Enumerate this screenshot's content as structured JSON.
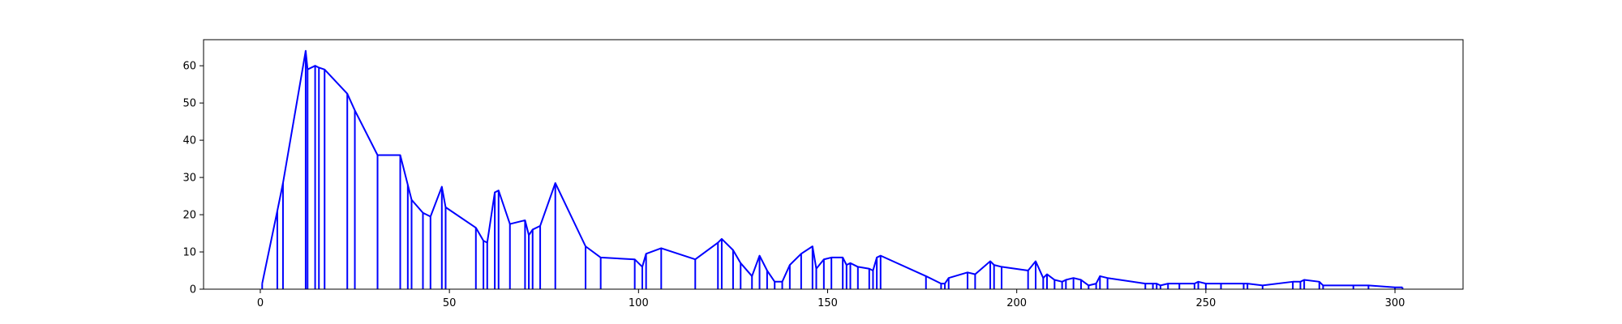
{
  "chart_data": {
    "type": "line",
    "title": "",
    "xlabel": "",
    "ylabel": "",
    "xlim": [
      -15,
      318
    ],
    "ylim": [
      0,
      67
    ],
    "x_ticks": [
      0,
      50,
      100,
      150,
      200,
      250,
      300
    ],
    "y_ticks": [
      0,
      10,
      20,
      30,
      40,
      50,
      60
    ],
    "x_tick_labels": [
      "0",
      "50",
      "100",
      "150",
      "200",
      "250",
      "300"
    ],
    "y_tick_labels": [
      "0",
      "10",
      "20",
      "30",
      "40",
      "50",
      "60"
    ],
    "grid": false,
    "stems": true,
    "series": [
      {
        "color": "#0000ff",
        "x": [
          0.5,
          4.5,
          6,
          12,
          12.5,
          14.5,
          15.5,
          17,
          23,
          25,
          31,
          37,
          39,
          40,
          43,
          45,
          48,
          49,
          57,
          59,
          60,
          62,
          63,
          66,
          70,
          71,
          72,
          74,
          78,
          86,
          90,
          99,
          101,
          102,
          106,
          115,
          121,
          122,
          125,
          127,
          130,
          132,
          134,
          136,
          138,
          140,
          143,
          146,
          147,
          149,
          151,
          154,
          155,
          156,
          158,
          161,
          162,
          163,
          164,
          176,
          180,
          181,
          182,
          187,
          189,
          193,
          194,
          196,
          203,
          205,
          207,
          208,
          210,
          212,
          213,
          215,
          217,
          219,
          221,
          222,
          224,
          234,
          236,
          237,
          238,
          240,
          243,
          247,
          248,
          250,
          254,
          260,
          261,
          265,
          273,
          275,
          276,
          280,
          281,
          289,
          293,
          300,
          302
        ],
        "y": [
          1.5,
          21,
          28.5,
          64,
          59,
          60,
          59.5,
          59,
          52.5,
          48,
          36,
          36,
          28,
          24,
          20.5,
          19.5,
          27.5,
          22,
          16.5,
          13,
          12.5,
          26,
          26.5,
          17.5,
          18.5,
          14.5,
          16,
          17,
          28.5,
          11.5,
          8.5,
          8,
          6,
          9.5,
          11,
          8,
          12.5,
          13.5,
          10.5,
          7,
          3.5,
          9,
          5,
          2,
          2,
          6.5,
          9.5,
          11.5,
          5.5,
          8,
          8.5,
          8.5,
          6.5,
          7,
          6,
          5.5,
          5,
          8.5,
          9,
          3.5,
          1.5,
          1.5,
          3,
          4.5,
          4,
          7.5,
          6.5,
          6,
          5,
          7.5,
          3,
          4,
          2.5,
          2,
          2.5,
          3,
          2.5,
          1,
          1.5,
          3.5,
          3,
          1.5,
          1.5,
          1.5,
          1,
          1.5,
          1.5,
          1.5,
          2,
          1.5,
          1.5,
          1.5,
          1.5,
          1,
          2,
          2,
          2.5,
          2,
          1,
          1,
          1,
          0.5,
          0.5
        ]
      }
    ]
  }
}
